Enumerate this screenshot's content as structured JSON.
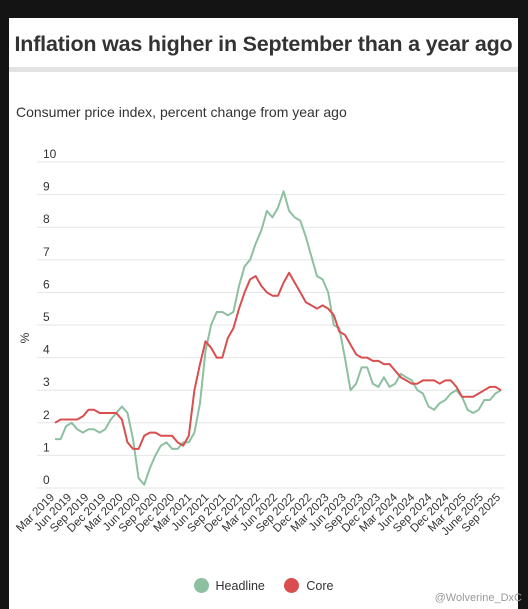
{
  "header": {
    "title": "Inflation was higher in September than a year ago",
    "subtitle": "Consumer price index, percent change from year ago"
  },
  "legend": {
    "items": [
      {
        "label": "Headline",
        "color": "#8dc0a0"
      },
      {
        "label": "Core",
        "color": "#d94f4f"
      }
    ]
  },
  "watermark": "@Wolverine_DxC",
  "chart_data": {
    "type": "line",
    "ylabel": "%",
    "ylim": [
      0,
      10
    ],
    "yticks": [
      0,
      1,
      2,
      3,
      4,
      5,
      6,
      7,
      8,
      9,
      10
    ],
    "x_tick_labels": [
      "Mar 2019",
      "Jun 2019",
      "Sep 2019",
      "Dec 2019",
      "Mar 2020",
      "Jun 2020",
      "Sep 2020",
      "Dec 2020",
      "Mar 2021",
      "Jun 2021",
      "Sep 2021",
      "Dec 2021",
      "Mar 2022",
      "Jun 2022",
      "Sep 2022",
      "Dec 2022",
      "Mar 2023",
      "Jun 2023",
      "Sep 2023",
      "Dec 2023",
      "Mar 2024",
      "Jun 2024",
      "Sep 2024",
      "Dec 2024",
      "Mar 2025",
      "June 2025",
      "Sep 2025"
    ],
    "x_start": "Mar 2019",
    "x_end": "Sep 2025",
    "grid": true,
    "legend_position": "bottom",
    "series": [
      {
        "name": "Headline",
        "color": "#8dc0a0",
        "values": [
          1.5,
          1.5,
          1.9,
          2.0,
          1.8,
          1.7,
          1.8,
          1.8,
          1.7,
          1.8,
          2.1,
          2.3,
          2.5,
          2.3,
          1.5,
          0.3,
          0.1,
          0.6,
          1.0,
          1.3,
          1.4,
          1.2,
          1.2,
          1.4,
          1.4,
          1.7,
          2.6,
          4.2,
          5.0,
          5.4,
          5.4,
          5.3,
          5.4,
          6.2,
          6.8,
          7.0,
          7.5,
          7.9,
          8.5,
          8.3,
          8.6,
          9.1,
          8.5,
          8.3,
          8.2,
          7.7,
          7.1,
          6.5,
          6.4,
          6.0,
          5.0,
          4.9,
          4.0,
          3.0,
          3.2,
          3.7,
          3.7,
          3.2,
          3.1,
          3.4,
          3.1,
          3.2,
          3.5,
          3.4,
          3.3,
          3.0,
          2.9,
          2.5,
          2.4,
          2.6,
          2.7,
          2.9,
          3.0,
          2.8,
          2.4,
          2.3,
          2.4,
          2.7,
          2.7,
          2.9,
          3.0
        ]
      },
      {
        "name": "Core",
        "color": "#d94f4f",
        "values": [
          2.0,
          2.1,
          2.1,
          2.1,
          2.1,
          2.2,
          2.4,
          2.4,
          2.3,
          2.3,
          2.3,
          2.3,
          2.1,
          1.4,
          1.2,
          1.2,
          1.6,
          1.7,
          1.7,
          1.6,
          1.6,
          1.6,
          1.4,
          1.3,
          1.6,
          3.0,
          3.8,
          4.5,
          4.3,
          4.0,
          4.0,
          4.6,
          4.9,
          5.5,
          6.0,
          6.4,
          6.5,
          6.2,
          6.0,
          5.9,
          5.9,
          6.3,
          6.6,
          6.3,
          6.0,
          5.7,
          5.6,
          5.5,
          5.6,
          5.5,
          5.3,
          4.8,
          4.7,
          4.4,
          4.1,
          4.0,
          4.0,
          3.9,
          3.9,
          3.8,
          3.8,
          3.6,
          3.4,
          3.3,
          3.2,
          3.2,
          3.3,
          3.3,
          3.3,
          3.2,
          3.3,
          3.3,
          3.1,
          2.8,
          2.8,
          2.8,
          2.9,
          3.0,
          3.1,
          3.1,
          3.0
        ]
      }
    ]
  }
}
